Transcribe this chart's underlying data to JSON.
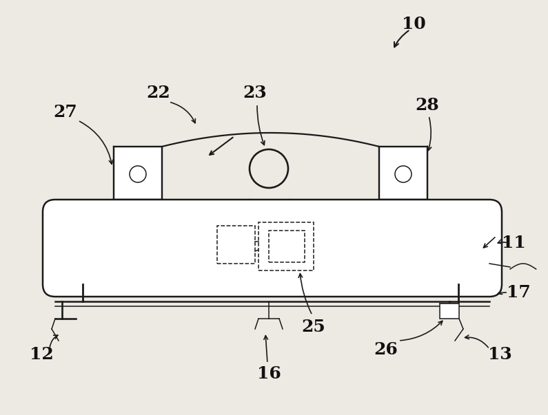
{
  "bg_color": "#ede9e3",
  "line_color": "#1a1a1a",
  "label_color": "#111111",
  "figsize": [
    7.95,
    6.03
  ],
  "dpi": 100
}
